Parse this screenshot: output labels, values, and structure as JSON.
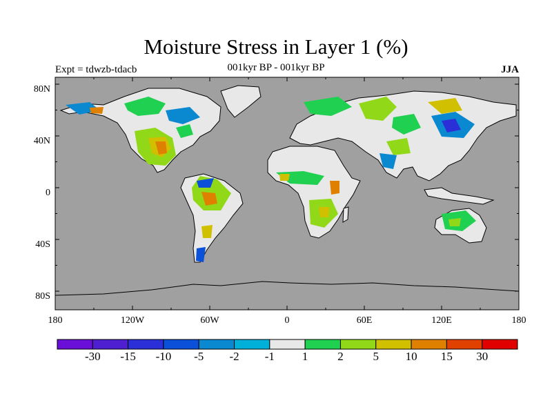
{
  "title": "Moisture Stress in Layer 1 (%)",
  "subtitle": "001kyr BP - 001kyr BP",
  "left_label": "Expt = tdwzb-tdacb",
  "right_label": "JJA",
  "y_ticks": [
    "80N",
    "40N",
    "0",
    "40S",
    "80S"
  ],
  "x_ticks": [
    "180",
    "120W",
    "60W",
    "0",
    "60E",
    "120E",
    "180"
  ],
  "colorbar": {
    "colors": [
      "#6a0fd8",
      "#4e1fd0",
      "#2a2fd8",
      "#0a50d8",
      "#0a88d0",
      "#00b0d8",
      "#e8e8e8",
      "#20d050",
      "#90d818",
      "#d0c000",
      "#e08000",
      "#e04000",
      "#e00000"
    ],
    "labels": [
      "-30",
      "-15",
      "-10",
      "-5",
      "-2",
      "-1",
      "1",
      "2",
      "5",
      "10",
      "15",
      "30"
    ]
  },
  "map": {
    "ocean_color": "#a0a0a0",
    "no_change_color": "#e8e8e8"
  }
}
